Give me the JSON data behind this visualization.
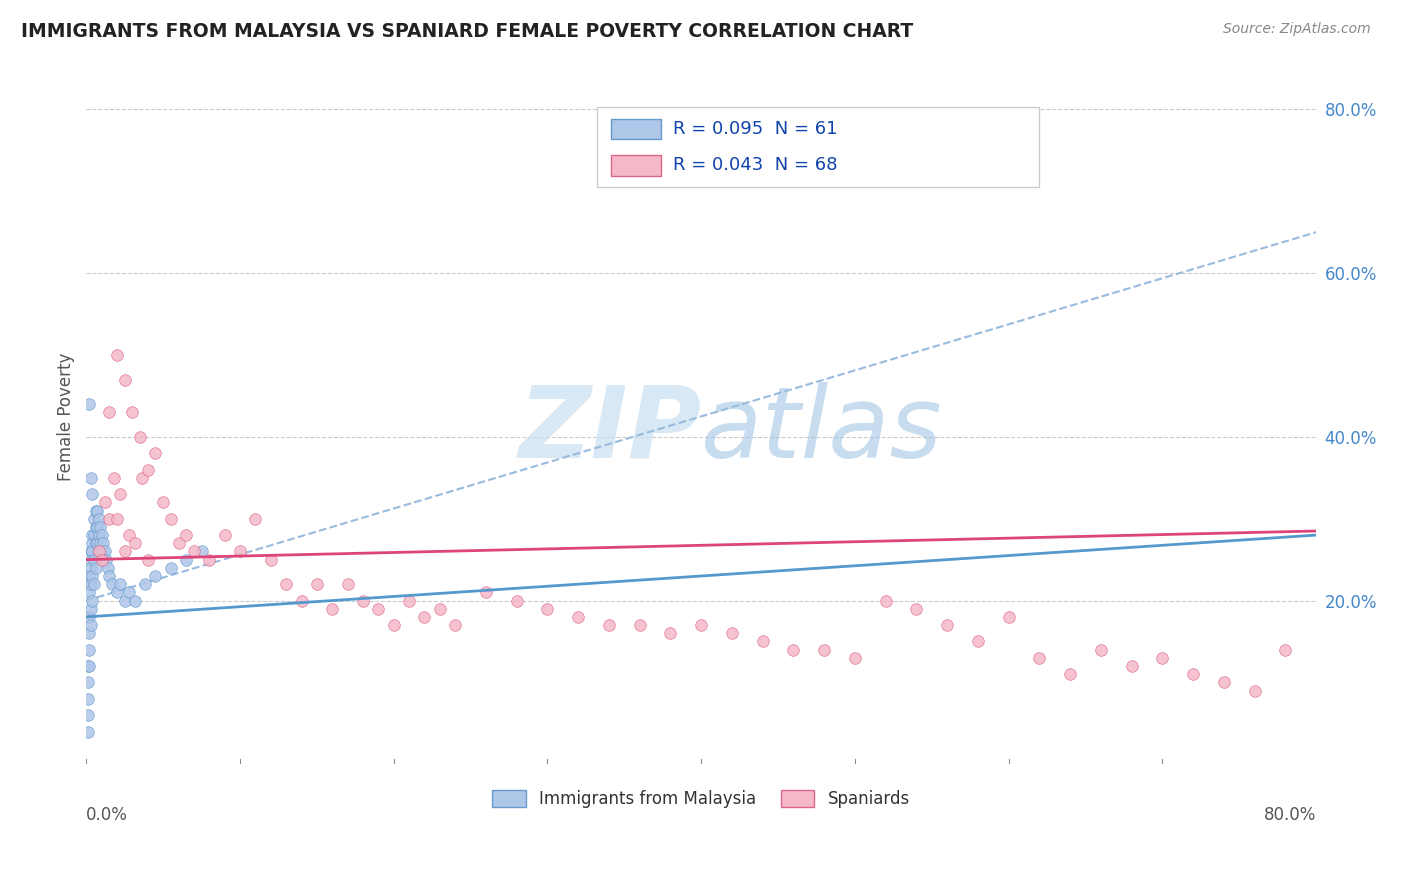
{
  "title": "IMMIGRANTS FROM MALAYSIA VS SPANIARD FEMALE POVERTY CORRELATION CHART",
  "source": "Source: ZipAtlas.com",
  "ylabel": "Female Poverty",
  "xlim": [
    0.0,
    0.8
  ],
  "ylim": [
    0.0,
    0.85
  ],
  "legend_entries": [
    {
      "label": "R = 0.095  N = 61",
      "facecolor": "#aec6e8",
      "edgecolor": "#6aaed6"
    },
    {
      "label": "R = 0.043  N = 68",
      "facecolor": "#f4b8c8",
      "edgecolor": "#e07090"
    }
  ],
  "legend_bottom": [
    {
      "label": "Immigrants from Malaysia",
      "facecolor": "#aec6e8",
      "edgecolor": "#6aaed6"
    },
    {
      "label": "Spaniards",
      "facecolor": "#f4b8c8",
      "edgecolor": "#e07090"
    }
  ],
  "blue_scatter_x": [
    0.001,
    0.001,
    0.001,
    0.001,
    0.001,
    0.002,
    0.002,
    0.002,
    0.002,
    0.002,
    0.002,
    0.002,
    0.003,
    0.003,
    0.003,
    0.003,
    0.003,
    0.003,
    0.004,
    0.004,
    0.004,
    0.004,
    0.004,
    0.005,
    0.005,
    0.005,
    0.005,
    0.006,
    0.006,
    0.006,
    0.006,
    0.007,
    0.007,
    0.007,
    0.008,
    0.008,
    0.008,
    0.009,
    0.009,
    0.01,
    0.01,
    0.011,
    0.011,
    0.012,
    0.013,
    0.014,
    0.015,
    0.017,
    0.02,
    0.022,
    0.025,
    0.028,
    0.032,
    0.038,
    0.045,
    0.055,
    0.065,
    0.075,
    0.002,
    0.003,
    0.004
  ],
  "blue_scatter_y": [
    0.1,
    0.12,
    0.08,
    0.06,
    0.04,
    0.23,
    0.22,
    0.21,
    0.18,
    0.16,
    0.14,
    0.12,
    0.26,
    0.25,
    0.24,
    0.22,
    0.19,
    0.17,
    0.28,
    0.27,
    0.26,
    0.23,
    0.2,
    0.3,
    0.28,
    0.25,
    0.22,
    0.31,
    0.29,
    0.27,
    0.24,
    0.31,
    0.29,
    0.27,
    0.3,
    0.28,
    0.26,
    0.29,
    0.27,
    0.28,
    0.26,
    0.27,
    0.25,
    0.26,
    0.25,
    0.24,
    0.23,
    0.22,
    0.21,
    0.22,
    0.2,
    0.21,
    0.2,
    0.22,
    0.23,
    0.24,
    0.25,
    0.26,
    0.44,
    0.35,
    0.33
  ],
  "pink_scatter_x": [
    0.008,
    0.01,
    0.012,
    0.015,
    0.018,
    0.02,
    0.022,
    0.025,
    0.028,
    0.032,
    0.036,
    0.04,
    0.045,
    0.05,
    0.055,
    0.06,
    0.065,
    0.07,
    0.08,
    0.09,
    0.1,
    0.11,
    0.12,
    0.13,
    0.14,
    0.15,
    0.16,
    0.17,
    0.18,
    0.19,
    0.2,
    0.21,
    0.22,
    0.23,
    0.24,
    0.26,
    0.28,
    0.3,
    0.32,
    0.34,
    0.36,
    0.38,
    0.4,
    0.42,
    0.44,
    0.46,
    0.48,
    0.5,
    0.52,
    0.54,
    0.56,
    0.58,
    0.6,
    0.62,
    0.64,
    0.66,
    0.68,
    0.7,
    0.72,
    0.74,
    0.76,
    0.78,
    0.015,
    0.02,
    0.025,
    0.03,
    0.035,
    0.04
  ],
  "pink_scatter_y": [
    0.26,
    0.25,
    0.32,
    0.3,
    0.35,
    0.3,
    0.33,
    0.26,
    0.28,
    0.27,
    0.35,
    0.25,
    0.38,
    0.32,
    0.3,
    0.27,
    0.28,
    0.26,
    0.25,
    0.28,
    0.26,
    0.3,
    0.25,
    0.22,
    0.2,
    0.22,
    0.19,
    0.22,
    0.2,
    0.19,
    0.17,
    0.2,
    0.18,
    0.19,
    0.17,
    0.21,
    0.2,
    0.19,
    0.18,
    0.17,
    0.17,
    0.16,
    0.17,
    0.16,
    0.15,
    0.14,
    0.14,
    0.13,
    0.2,
    0.19,
    0.17,
    0.15,
    0.18,
    0.13,
    0.11,
    0.14,
    0.12,
    0.13,
    0.11,
    0.1,
    0.09,
    0.14,
    0.43,
    0.5,
    0.47,
    0.43,
    0.4,
    0.36
  ],
  "blue_line_x": [
    0.0,
    0.8
  ],
  "blue_line_y": [
    0.18,
    0.28
  ],
  "pink_line_x": [
    0.0,
    0.8
  ],
  "pink_line_y": [
    0.25,
    0.285
  ],
  "dashed_line_x": [
    0.0,
    0.8
  ],
  "dashed_line_y": [
    0.2,
    0.65
  ],
  "trendline_color_blue": "#5599cc",
  "trendline_color_pink": "#dd4477",
  "scatter_color_blue": "#aec6e8",
  "scatter_color_pink": "#f4b8c8",
  "scatter_edge_blue": "#6699cc",
  "scatter_edge_pink": "#dd6688",
  "dashed_line_color": "#99bbdd",
  "watermark_color": "#c8dff0",
  "background_color": "#ffffff",
  "grid_color": "#dddddd",
  "grid_dash_color": "#cccccc"
}
